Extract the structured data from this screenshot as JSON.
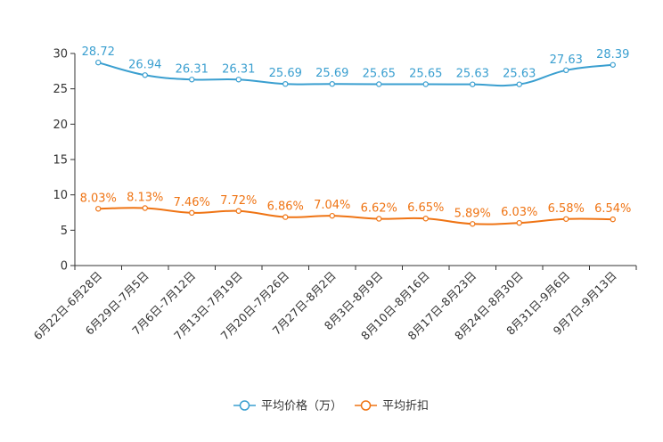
{
  "chart_data": {
    "type": "line",
    "categories": [
      "6月22日-6月28日",
      "6月29日-7月5日",
      "7月6日-7月12日",
      "7月13日-7月19日",
      "7月20日-7月26日",
      "7月27日-8月2日",
      "8月3日-8月9日",
      "8月10日-8月16日",
      "8月17日-8月23日",
      "8月24日-8月30日",
      "8月31日-9月6日",
      "9月7日-9月13日"
    ],
    "series": [
      {
        "name": "平均价格（万）",
        "color": "#3a9fd0",
        "values": [
          28.72,
          26.94,
          26.31,
          26.31,
          25.69,
          25.69,
          25.65,
          25.65,
          25.63,
          25.63,
          27.63,
          28.39
        ],
        "labels": [
          "28.72",
          "26.94",
          "26.31",
          "26.31",
          "25.69",
          "25.69",
          "25.65",
          "25.65",
          "25.63",
          "25.63",
          "27.63",
          "28.39"
        ]
      },
      {
        "name": "平均折扣",
        "color": "#ef7414",
        "values": [
          8.03,
          8.13,
          7.46,
          7.72,
          6.86,
          7.04,
          6.62,
          6.65,
          5.89,
          6.03,
          6.58,
          6.54
        ],
        "labels": [
          "8.03%",
          "8.13%",
          "7.46%",
          "7.72%",
          "6.86%",
          "7.04%",
          "6.62%",
          "6.65%",
          "5.89%",
          "6.03%",
          "6.58%",
          "6.54%"
        ]
      }
    ],
    "yticks": [
      "0",
      "5",
      "10",
      "15",
      "20",
      "25",
      "30"
    ],
    "ylim": [
      0,
      30
    ],
    "grid": false,
    "legend_position": "bottom-center",
    "title": "",
    "xlabel": "",
    "ylabel": ""
  }
}
